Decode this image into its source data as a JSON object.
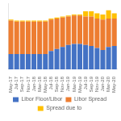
{
  "chart_data": {
    "type": "bar",
    "stacked": true,
    "categories": [
      "May-17",
      "Jul-17",
      "Sep-17",
      "Nov-17",
      "Jan-18",
      "Mar-18",
      "May-18",
      "Jul-18",
      "Sep-18",
      "Nov-18",
      "Jan-19",
      "Mar-19",
      "May-19",
      "Jul-19",
      "Sep-19",
      "Nov-19",
      "Jan-20",
      "Mar-20",
      "May-20"
    ],
    "series": [
      {
        "name": "Libor Floor/Libor",
        "color": "#4472C4",
        "values": [
          1.5,
          1.5,
          1.5,
          1.5,
          1.5,
          1.5,
          1.5,
          1.8,
          2.0,
          2.2,
          2.4,
          2.5,
          2.5,
          2.4,
          2.3,
          2.1,
          1.9,
          2.2,
          2.3
        ]
      },
      {
        "name": "Libor Spread",
        "color": "#ED7D31",
        "values": [
          3.3,
          3.2,
          3.2,
          3.2,
          3.2,
          3.2,
          3.2,
          3.1,
          3.0,
          2.9,
          2.8,
          2.8,
          2.8,
          2.8,
          2.9,
          2.9,
          3.0,
          2.8,
          2.7
        ]
      },
      {
        "name": "Spread due to",
        "color": "#FFC000",
        "values": [
          0.1,
          0.1,
          0.1,
          0.1,
          0.1,
          0.1,
          0.1,
          0.1,
          0.1,
          0.1,
          0.1,
          0.1,
          0.1,
          0.5,
          0.5,
          0.5,
          0.5,
          0.8,
          0.5
        ]
      }
    ],
    "ylim": [
      0,
      6.5
    ],
    "tick_labels": "x",
    "grid": false,
    "legend": "bottom"
  }
}
